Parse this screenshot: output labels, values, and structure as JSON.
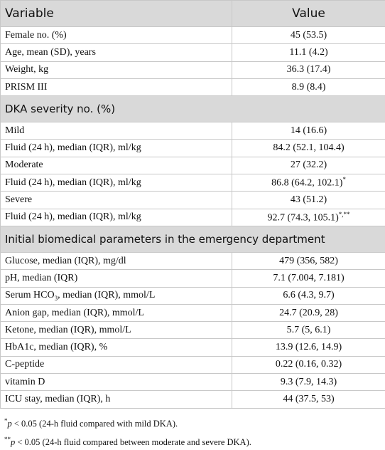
{
  "table": {
    "header": [
      "Variable",
      "Value"
    ],
    "rows": [
      {
        "label": "Female no. (%)",
        "value": "45 (53.5)"
      },
      {
        "label": "Age, mean (SD), years",
        "value": "11.1 (4.2)"
      },
      {
        "label": "Weight, kg",
        "value": "36.3 (17.4)"
      },
      {
        "label": "PRISM III",
        "value": "8.9 (8.4)"
      },
      {
        "section": "DKA severity no. (%)"
      },
      {
        "label": "Mild",
        "value": "14 (16.6)"
      },
      {
        "label": "Fluid (24 h), median (IQR), ml/kg",
        "value": "84.2 (52.1, 104.4)"
      },
      {
        "label": "Moderate",
        "value": "27 (32.2)"
      },
      {
        "label": "Fluid (24 h), median (IQR), ml/kg",
        "value": "86.8 (64.2, 102.1)",
        "value_note": "*"
      },
      {
        "label": "Severe",
        "value": "43 (51.2)"
      },
      {
        "label": "Fluid (24 h), median (IQR), ml/kg",
        "value": "92.7 (74.3, 105.1)",
        "value_note": "*,**"
      },
      {
        "section": "Initial biomedical parameters in the emergency department"
      },
      {
        "label": "Glucose, median (IQR), mg/dl",
        "value": "479 (356, 582)"
      },
      {
        "label": "pH, median (IQR)",
        "value": "7.1 (7.004, 7.181)"
      },
      {
        "label": "Serum HCO",
        "label_sub": "3",
        "label_rest": ", median (IQR), mmol/L",
        "value": "6.6 (4.3, 9.7)"
      },
      {
        "label": "Anion gap, median (IQR), mmol/L",
        "value": "24.7 (20.9, 28)"
      },
      {
        "label": "Ketone, median (IQR), mmol/L",
        "value": "5.7 (5, 6.1)"
      },
      {
        "label": "HbA1c, median (IQR), %",
        "value": "13.9 (12.6, 14.9)"
      },
      {
        "label": "C-peptide",
        "value": "0.22 (0.16, 0.32)"
      },
      {
        "label": "vitamin D",
        "value": "9.3 (7.9, 14.3)"
      },
      {
        "label": "ICU stay, median (IQR), h",
        "value": "44 (37.5, 53)"
      }
    ]
  },
  "footnotes": [
    {
      "mark": "*",
      "p": "p",
      "text": " < 0.05 (24-h fluid compared with mild DKA)."
    },
    {
      "mark": "**",
      "p": "p",
      "text": " < 0.05 (24-h fluid compared between moderate and severe DKA)."
    }
  ]
}
